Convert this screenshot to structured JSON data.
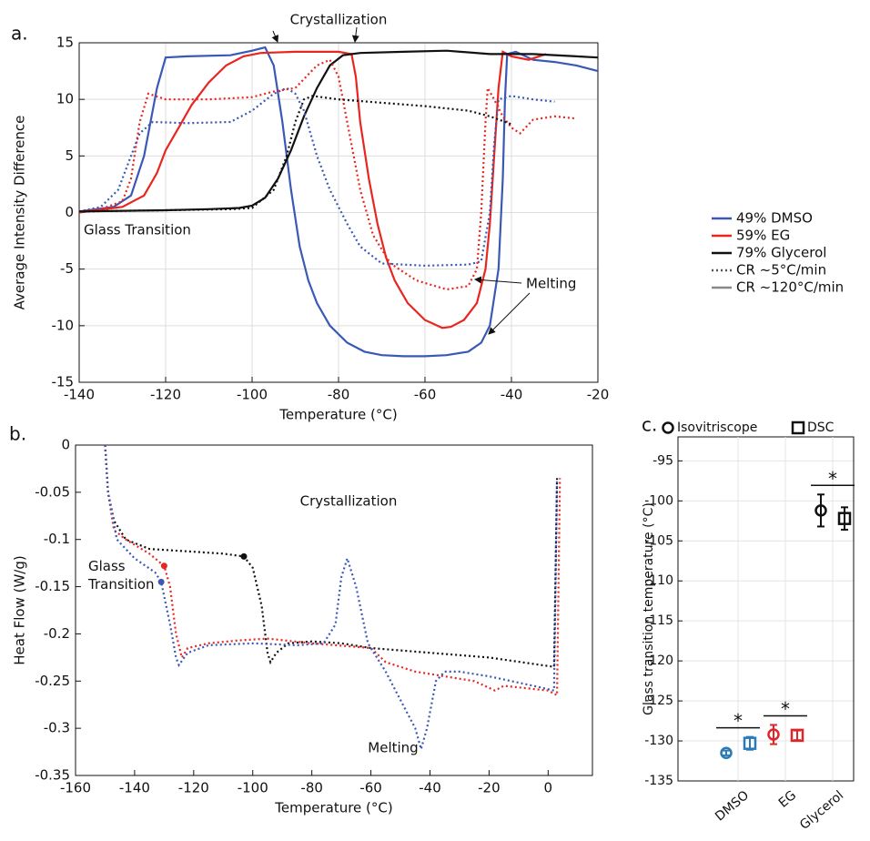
{
  "chart_data": [
    {
      "type": "line",
      "label": "a.",
      "xlabel": "Temperature (°C)",
      "ylabel": "Average Intensity Difference",
      "xlim": [
        -140,
        -20
      ],
      "ylim": [
        -15,
        15
      ],
      "xticks": [
        -140,
        -120,
        -100,
        -80,
        -60,
        -40,
        -20
      ],
      "yticks": [
        -15,
        -10,
        -5,
        0,
        5,
        10,
        15
      ],
      "grid": true,
      "annotations": [
        "Crystallization",
        "Glass Transition",
        "Melting"
      ],
      "legend": [
        {
          "label": "49% DMSO",
          "color": "#3a58b5",
          "dash": "solid"
        },
        {
          "label": "59% EG",
          "color": "#e8261f",
          "dash": "solid"
        },
        {
          "label": "79% Glycerol",
          "color": "#111111",
          "dash": "solid"
        },
        {
          "label": "CR ~5°C/min",
          "color": "#555555",
          "dash": "dotted"
        },
        {
          "label": "CR ~120°C/min",
          "color": "#888888",
          "dash": "solid"
        }
      ],
      "series": [
        {
          "color": "#3a58b5",
          "dash": "solid",
          "x": [
            -140,
            -132,
            -128,
            -125,
            -122,
            -120,
            -115,
            -105,
            -100,
            -97,
            -95,
            -93,
            -91,
            -89,
            -87,
            -85,
            -82,
            -78,
            -74,
            -70,
            -65,
            -60,
            -55,
            -50,
            -47,
            -45,
            -43,
            -42,
            -41.5,
            -41,
            -39,
            -35,
            -30,
            -25,
            -20
          ],
          "values": [
            0.1,
            0.5,
            1.5,
            5,
            11,
            13.7,
            13.8,
            13.9,
            14.3,
            14.6,
            13,
            8,
            2,
            -3,
            -6,
            -8,
            -10,
            -11.5,
            -12.3,
            -12.6,
            -12.7,
            -12.7,
            -12.6,
            -12.3,
            -11.5,
            -10,
            -5,
            3,
            10,
            14,
            14.2,
            13.5,
            13.3,
            13,
            12.5
          ]
        },
        {
          "color": "#e8261f",
          "dash": "solid",
          "x": [
            -140,
            -130,
            -125,
            -122,
            -120,
            -117,
            -114,
            -110,
            -106,
            -102,
            -98,
            -90,
            -80,
            -77,
            -76,
            -75,
            -73,
            -71,
            -69,
            -67,
            -64,
            -60,
            -56,
            -54,
            -51,
            -48,
            -46,
            -45,
            -44,
            -43,
            -42,
            -40,
            -36,
            -32
          ],
          "values": [
            0,
            0.5,
            1.5,
            3.5,
            5.5,
            7.5,
            9.5,
            11.5,
            13,
            13.8,
            14.1,
            14.2,
            14.2,
            14,
            12,
            8,
            3,
            -1,
            -4,
            -6,
            -8,
            -9.5,
            -10.2,
            -10.1,
            -9.5,
            -8,
            -5,
            -1,
            5,
            11,
            14.2,
            13.8,
            13.5,
            14
          ]
        },
        {
          "color": "#111111",
          "dash": "solid",
          "x": [
            -140,
            -120,
            -110,
            -103,
            -100,
            -97,
            -94,
            -91,
            -88,
            -85,
            -82,
            -79,
            -75,
            -65,
            -55,
            -45,
            -35,
            -25,
            -20
          ],
          "values": [
            0.1,
            0.2,
            0.3,
            0.4,
            0.6,
            1.3,
            3,
            5.5,
            8.5,
            11,
            13,
            13.9,
            14.1,
            14.2,
            14.3,
            14,
            14,
            13.8,
            13.7
          ]
        },
        {
          "color": "#3a58b5",
          "dash": "dotted",
          "x": [
            -140,
            -135,
            -131,
            -128,
            -126,
            -123,
            -115,
            -105,
            -100,
            -95,
            -92,
            -90,
            -88,
            -85,
            -82,
            -78,
            -75,
            -70,
            -60,
            -50,
            -47,
            -45,
            -44,
            -43,
            -40,
            -35,
            -30
          ],
          "values": [
            0.1,
            0.5,
            2,
            5,
            7,
            8,
            7.9,
            8,
            9,
            10.5,
            11,
            10.5,
            9,
            5,
            2,
            -1,
            -3,
            -4.5,
            -4.7,
            -4.6,
            -4.3,
            0,
            6,
            10,
            10.3,
            10,
            9.8
          ]
        },
        {
          "color": "#e8261f",
          "dash": "dotted",
          "x": [
            -140,
            -135,
            -130,
            -128,
            -126,
            -124,
            -120,
            -115,
            -110,
            -100,
            -95,
            -90,
            -85,
            -82,
            -80,
            -78,
            -75,
            -72,
            -68,
            -62,
            -55,
            -50,
            -48,
            -47,
            -46,
            -45.5,
            -44,
            -42,
            -40,
            -38,
            -35,
            -30,
            -25
          ],
          "values": [
            0.1,
            0.3,
            1,
            3,
            8,
            10.5,
            10,
            10,
            10,
            10.2,
            10.7,
            11,
            13,
            13.5,
            12,
            8,
            2,
            -2,
            -4.5,
            -6,
            -6.8,
            -6.5,
            -5,
            0,
            8,
            11,
            10,
            8.5,
            7.5,
            7,
            8.2,
            8.5,
            8.3
          ]
        },
        {
          "color": "#111111",
          "dash": "dotted",
          "x": [
            -140,
            -120,
            -105,
            -100,
            -95,
            -92,
            -90,
            -88,
            -86,
            -80,
            -70,
            -60,
            -50,
            -45,
            -40
          ],
          "values": [
            0.1,
            0.2,
            0.3,
            0.4,
            2,
            5,
            8,
            10,
            10.3,
            10,
            9.7,
            9.4,
            9,
            8.5,
            7.8
          ]
        }
      ]
    },
    {
      "type": "line",
      "label": "b.",
      "xlabel": "Temperature (°C)",
      "ylabel": "Heat Flow (W/g)",
      "xlim": [
        -160,
        15
      ],
      "ylim": [
        -0.35,
        0
      ],
      "xticks": [
        -160,
        -140,
        -120,
        -100,
        -80,
        -60,
        -40,
        -20,
        0
      ],
      "yticks": [
        -0.35,
        -0.3,
        -0.25,
        -0.2,
        -0.15,
        -0.1,
        -0.05,
        0
      ],
      "grid": false,
      "annotations": [
        "Crystallization",
        "Glass Transition",
        "Melting"
      ],
      "series": [
        {
          "color": "#111111",
          "dash": "dotted",
          "x": [
            -150,
            -149,
            -147,
            -143,
            -135,
            -120,
            -110,
            -103,
            -100,
            -97,
            -95,
            -94,
            -92,
            -88,
            -80,
            -70,
            -60,
            -40,
            -20,
            2,
            3
          ],
          "values": [
            0,
            -0.05,
            -0.08,
            -0.1,
            -0.11,
            -0.113,
            -0.115,
            -0.118,
            -0.13,
            -0.17,
            -0.22,
            -0.23,
            -0.22,
            -0.21,
            -0.208,
            -0.21,
            -0.215,
            -0.22,
            -0.225,
            -0.235,
            -0.035
          ],
          "marker": {
            "x": -103,
            "y": -0.118
          }
        },
        {
          "color": "#e8261f",
          "dash": "dotted",
          "x": [
            -150,
            -149,
            -147,
            -143,
            -135,
            -130,
            -128,
            -126,
            -124,
            -122,
            -115,
            -105,
            -95,
            -80,
            -60,
            -55,
            -45,
            -35,
            -25,
            -18,
            -15,
            0,
            3,
            4
          ],
          "values": [
            0,
            -0.05,
            -0.09,
            -0.1,
            -0.115,
            -0.128,
            -0.15,
            -0.2,
            -0.225,
            -0.215,
            -0.21,
            -0.207,
            -0.205,
            -0.21,
            -0.215,
            -0.23,
            -0.24,
            -0.245,
            -0.25,
            -0.26,
            -0.255,
            -0.26,
            -0.265,
            -0.035
          ],
          "marker": {
            "x": -130,
            "y": -0.128
          }
        },
        {
          "color": "#3a58b5",
          "dash": "dotted",
          "x": [
            -150,
            -149,
            -146,
            -140,
            -133,
            -131,
            -128,
            -126,
            -125,
            -122,
            -115,
            -100,
            -85,
            -76,
            -72,
            -70,
            -68,
            -65,
            -61,
            -55,
            -50,
            -45,
            -43,
            -41,
            -38,
            -35,
            -30,
            -20,
            -5,
            2,
            3
          ],
          "values": [
            0,
            -0.05,
            -0.1,
            -0.12,
            -0.135,
            -0.145,
            -0.19,
            -0.225,
            -0.233,
            -0.22,
            -0.212,
            -0.21,
            -0.212,
            -0.21,
            -0.19,
            -0.14,
            -0.12,
            -0.15,
            -0.21,
            -0.24,
            -0.27,
            -0.3,
            -0.322,
            -0.3,
            -0.25,
            -0.24,
            -0.24,
            -0.245,
            -0.255,
            -0.26,
            -0.035
          ],
          "marker": {
            "x": -131,
            "y": -0.145
          }
        }
      ]
    },
    {
      "type": "errorbar",
      "label": "c.",
      "ylabel": "Glass transition temperature (°C)",
      "categories": [
        "DMSO",
        "EG",
        "Glycerol"
      ],
      "colors": [
        "#2a7ab8",
        "#e0262a",
        "#111111"
      ],
      "ylim": [
        -135,
        -92
      ],
      "yticks": [
        -135,
        -130,
        -125,
        -120,
        -115,
        -110,
        -105,
        -100,
        -95
      ],
      "grid": true,
      "significance": [
        "*",
        "*",
        "*"
      ],
      "series": [
        {
          "name": "Isovitriscope",
          "marker": "circle",
          "values": [
            -131.5,
            -129.2,
            -101.2
          ],
          "errors": [
            0.3,
            1.2,
            2
          ]
        },
        {
          "name": "DSC",
          "marker": "square",
          "values": [
            -130.3,
            -129.3,
            -102.2
          ],
          "errors": [
            0.8,
            0.6,
            1.4
          ]
        }
      ]
    }
  ]
}
